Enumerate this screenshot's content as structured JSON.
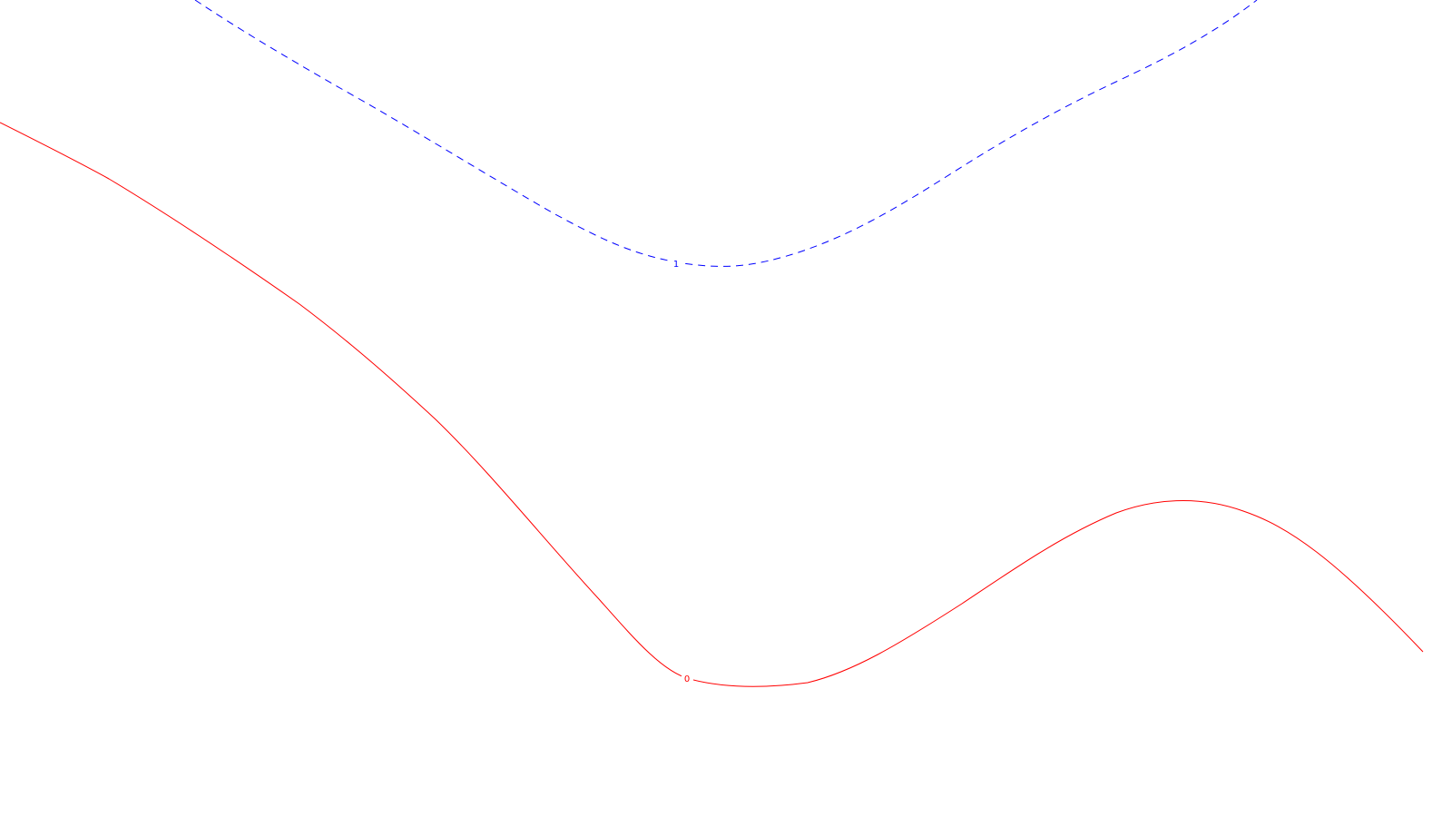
{
  "contours": [
    {
      "id": "contour-1",
      "label": "1",
      "color": "#0000ff",
      "line_style": "dashed"
    },
    {
      "id": "contour-0",
      "label": "0",
      "color": "#ff0000",
      "line_style": "solid"
    }
  ]
}
